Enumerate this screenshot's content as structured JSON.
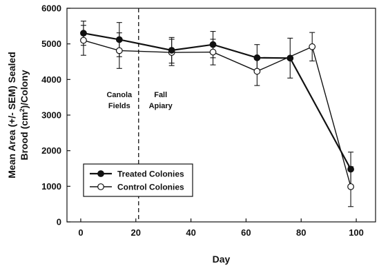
{
  "chart_data": {
    "type": "line",
    "title": "",
    "xlabel": "Day",
    "ylabel_line1": "Mean Area (+/- SEM) Sealed",
    "ylabel_line2_pre": "Brood (cm",
    "ylabel_line2_sup": "2",
    "ylabel_line2_post": ")/Colony",
    "xlim": [
      -5,
      107
    ],
    "ylim": [
      0,
      6000
    ],
    "xticks": [
      0,
      20,
      40,
      60,
      80,
      100
    ],
    "yticks": [
      0,
      1000,
      2000,
      3000,
      4000,
      5000,
      6000
    ],
    "grid": false,
    "legend_position": "bottom-left",
    "series": [
      {
        "name": "Treated Colonies",
        "marker": "filled-circle",
        "x": [
          1,
          14,
          33,
          48,
          64,
          76,
          98
        ],
        "y": [
          5300,
          5120,
          4820,
          4980,
          4610,
          4600,
          1480
        ],
        "err": [
          340,
          480,
          360,
          370,
          370,
          560,
          480
        ]
      },
      {
        "name": "Control Colonies",
        "marker": "open-circle",
        "x": [
          1,
          14,
          33,
          48,
          64,
          84,
          98
        ],
        "y": [
          5100,
          4810,
          4760,
          4770,
          4230,
          4920,
          990
        ],
        "err": [
          420,
          500,
          370,
          360,
          400,
          400,
          560
        ]
      }
    ],
    "annotations": [
      {
        "id": "canola",
        "lines": [
          "Canola",
          "Fields"
        ],
        "x": 14,
        "y": 3500
      },
      {
        "id": "fall",
        "lines": [
          "Fall",
          "Apiary"
        ],
        "x": 29,
        "y": 3500
      }
    ],
    "vline": {
      "x": 21,
      "style": "dashed"
    }
  }
}
